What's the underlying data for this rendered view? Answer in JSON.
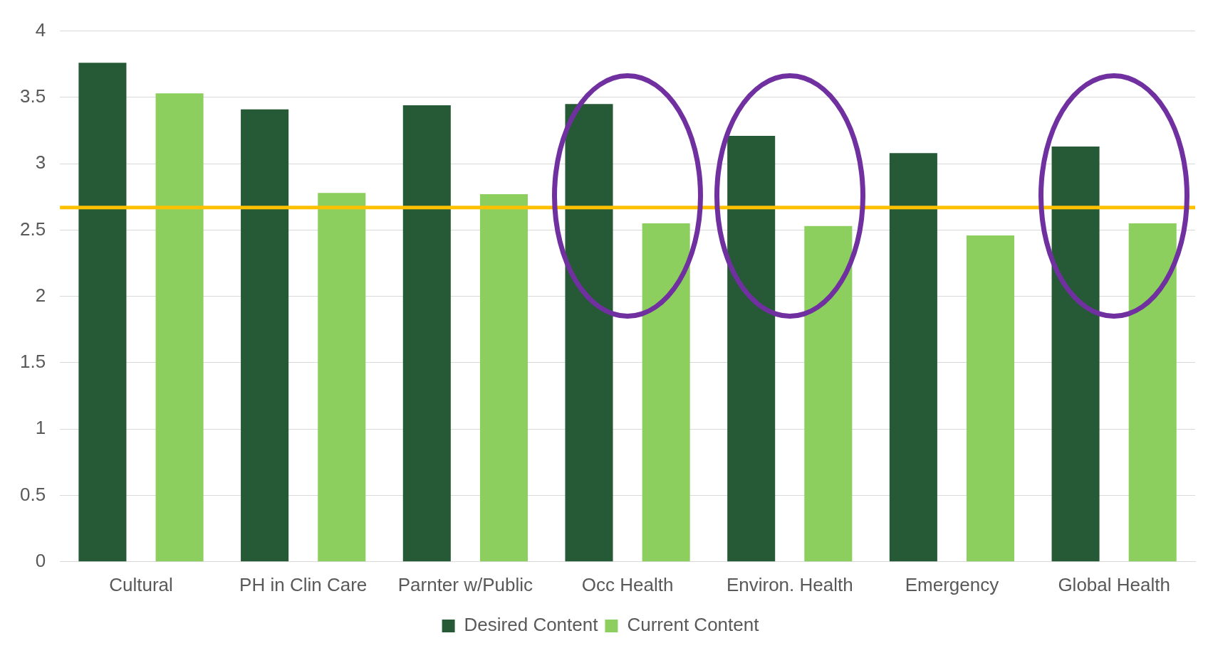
{
  "chart_data": {
    "type": "bar",
    "categories": [
      "Cultural",
      "PH in Clin Care",
      "Parnter w/Public",
      "Occ Health",
      "Environ. Health",
      "Emergency",
      "Global Health"
    ],
    "series": [
      {
        "name": "Desired Content",
        "color": "#265a36",
        "values": [
          3.76,
          3.41,
          3.44,
          3.45,
          3.21,
          3.08,
          3.13
        ]
      },
      {
        "name": "Current Content",
        "color": "#8ccf5f",
        "values": [
          3.53,
          2.78,
          2.77,
          2.55,
          2.53,
          2.46,
          2.55
        ]
      }
    ],
    "ylim": [
      0,
      4
    ],
    "yticks": [
      0,
      0.5,
      1,
      1.5,
      2,
      2.5,
      3,
      3.5,
      4
    ],
    "grid": "y",
    "legend": "bottom",
    "ref_lines": [
      {
        "axis": "y",
        "value": 2.67,
        "color": "#ffc000"
      }
    ]
  }
}
